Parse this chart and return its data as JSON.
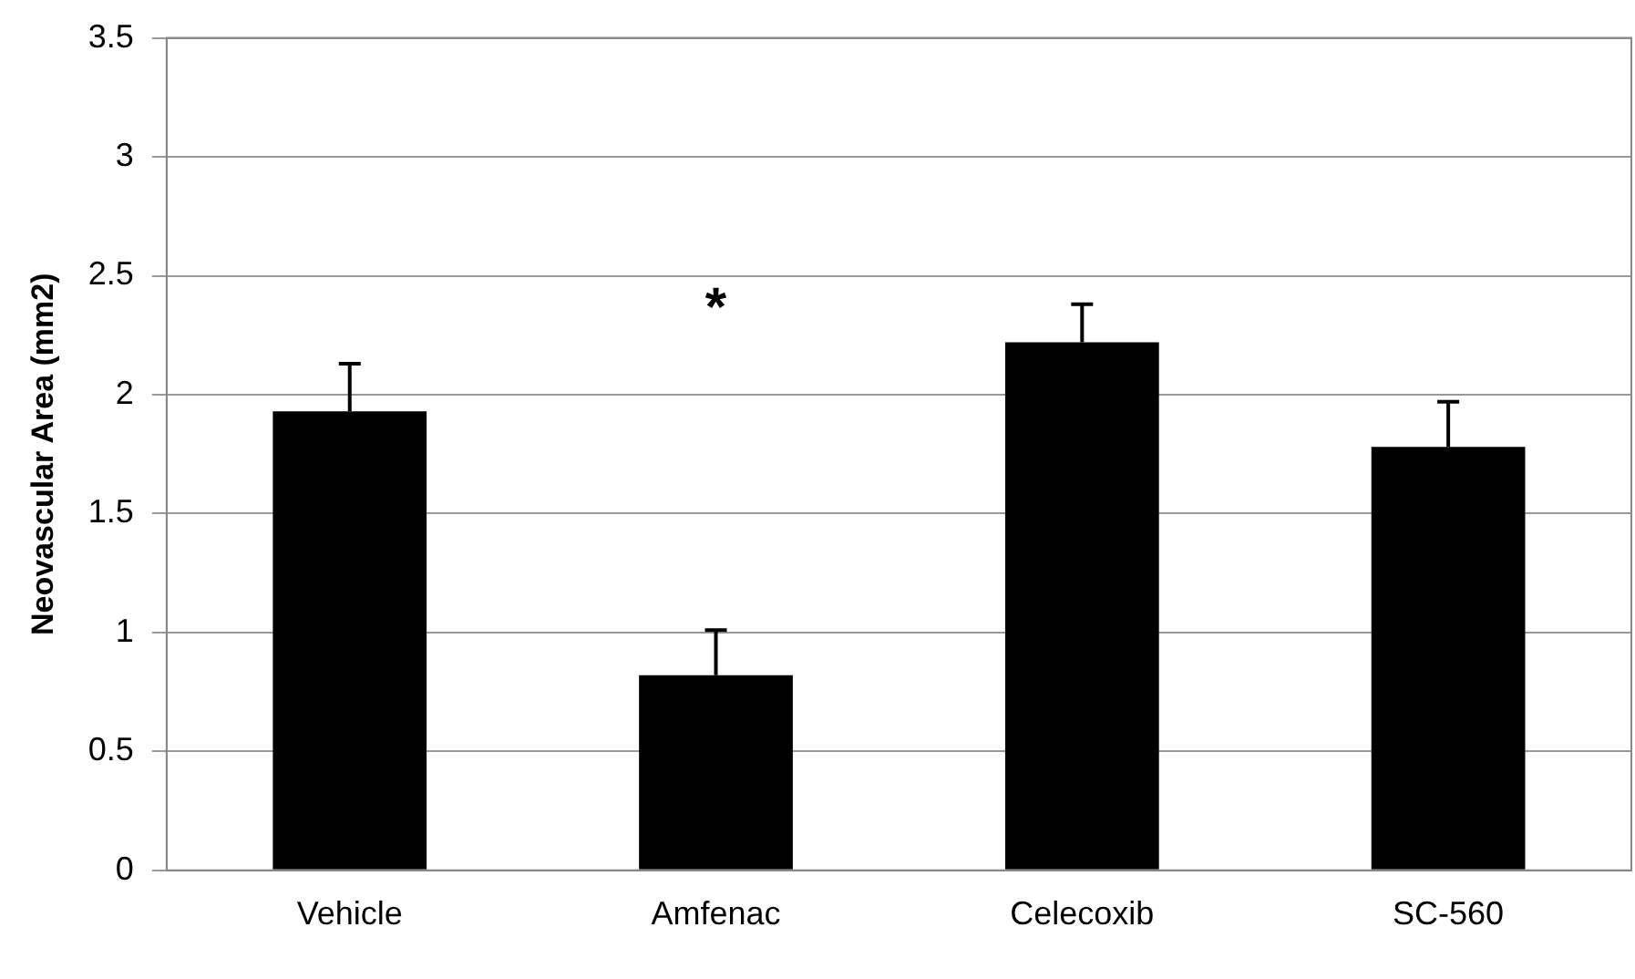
{
  "chart_data": {
    "type": "bar",
    "ylabel": "Neovascular Area (mm2)",
    "categories": [
      "Vehicle",
      "Amfenac",
      "Celecoxib",
      "SC-560"
    ],
    "values": [
      1.93,
      0.82,
      2.22,
      1.78
    ],
    "color": "#000000",
    "errors": [
      [
        1.93,
        2.13
      ],
      [
        0.82,
        1.01
      ],
      [
        2.22,
        2.38
      ],
      [
        1.78,
        1.97
      ]
    ],
    "ylim": [
      0,
      3.5
    ],
    "yticks": [
      0,
      0.5,
      1,
      1.5,
      2,
      2.5,
      3,
      3.5
    ],
    "grid": "y",
    "annotations": [
      "*"
    ]
  }
}
